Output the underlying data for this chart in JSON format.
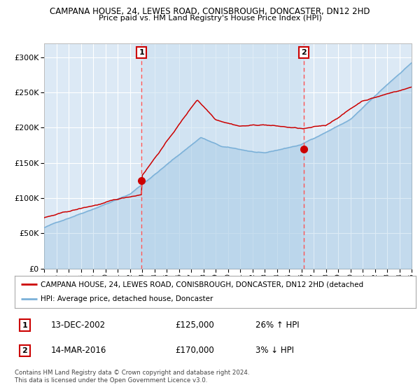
{
  "title1": "CAMPANA HOUSE, 24, LEWES ROAD, CONISBROUGH, DONCASTER, DN12 2HD",
  "title2": "Price paid vs. HM Land Registry's House Price Index (HPI)",
  "background_color": "#ffffff",
  "chart_bg_color": "#dce9f5",
  "grid_color": "#ffffff",
  "x_start_year": 1995,
  "x_end_year": 2025,
  "y_min": 0,
  "y_max": 320000,
  "y_ticks": [
    0,
    50000,
    100000,
    150000,
    200000,
    250000,
    300000
  ],
  "y_tick_labels": [
    "£0",
    "£50K",
    "£100K",
    "£150K",
    "£200K",
    "£250K",
    "£300K"
  ],
  "sale1_date": 2002.95,
  "sale1_price": 125000,
  "sale2_date": 2016.2,
  "sale2_price": 170000,
  "legend_line1": "CAMPANA HOUSE, 24, LEWES ROAD, CONISBROUGH, DONCASTER, DN12 2HD (detached",
  "legend_line2": "HPI: Average price, detached house, Doncaster",
  "ann1_num": "1",
  "ann1_date": "13-DEC-2002",
  "ann1_price": "£125,000",
  "ann1_hpi": "26% ↑ HPI",
  "ann2_num": "2",
  "ann2_date": "14-MAR-2016",
  "ann2_price": "£170,000",
  "ann2_hpi": "3% ↓ HPI",
  "footer": "Contains HM Land Registry data © Crown copyright and database right 2024.\nThis data is licensed under the Open Government Licence v3.0.",
  "hpi_color": "#7ab0d8",
  "price_color": "#cc0000",
  "dashed_color": "#ff5555",
  "shade_color": "#c8dff0"
}
